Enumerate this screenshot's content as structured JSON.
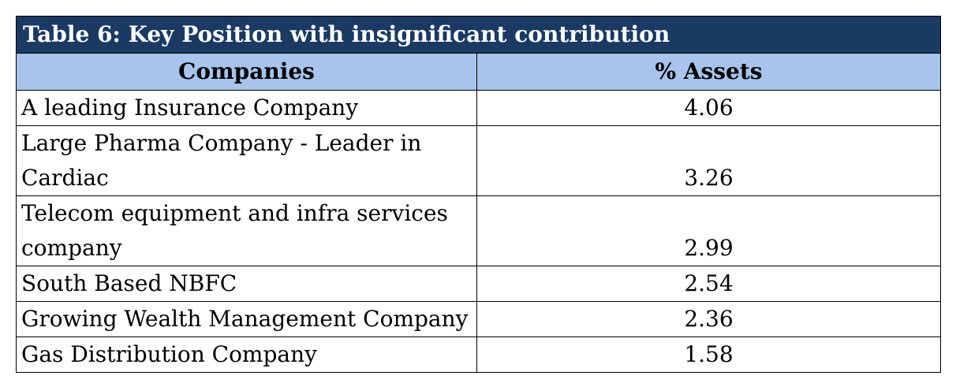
{
  "table": {
    "title": "Table 6: Key Position with insignificant contribution",
    "headers": [
      "Companies",
      "% Assets"
    ],
    "rows": [
      {
        "company": "A leading Insurance Company",
        "assets": "4.06"
      },
      {
        "company": "Large Pharma Company - Leader in Cardiac",
        "assets": "3.26"
      },
      {
        "company": "Telecom equipment and infra services company",
        "assets": "2.99"
      },
      {
        "company": "South Based NBFC",
        "assets": "2.54"
      },
      {
        "company": "Growing Wealth Management Company",
        "assets": "2.36"
      },
      {
        "company": "Gas Distribution Company",
        "assets": "1.58"
      }
    ]
  },
  "colors": {
    "title_bg": "#1a3a63",
    "header_bg": "#a8c4ec"
  }
}
